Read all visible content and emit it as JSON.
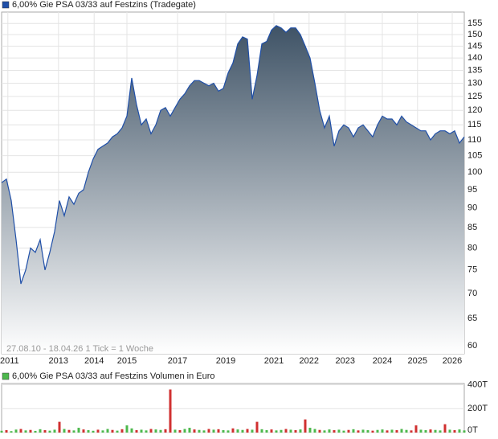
{
  "chart_data": [
    {
      "type": "area",
      "legend": "6,00% Gie PSA 03/33 auf Festzins (Tradegate)",
      "annotation": "27.08.10 - 18.04.26   1 Tick = 1 Woche",
      "color": "#1f4fa8",
      "area_color": "#3f5366",
      "log_scale": true,
      "grid": true,
      "x": [
        0,
        1,
        2,
        3,
        4,
        5,
        6,
        7,
        8,
        9,
        10,
        11,
        12,
        13,
        14,
        15,
        16,
        17,
        18,
        19,
        20,
        21,
        22,
        23,
        24,
        25,
        26,
        27,
        28,
        29,
        30,
        31,
        32,
        33,
        34,
        35,
        36,
        37,
        38,
        39,
        40,
        41,
        42,
        43,
        44,
        45,
        46,
        47,
        48,
        49,
        50,
        51,
        52,
        53,
        54,
        55,
        56,
        57,
        58,
        59,
        60,
        61,
        62,
        63,
        64,
        65,
        66,
        67,
        68,
        69,
        70,
        71,
        72,
        73,
        74,
        75,
        76,
        77,
        78,
        79,
        80,
        81,
        82,
        83,
        84,
        85,
        86,
        87,
        88,
        89,
        90,
        91,
        92,
        93,
        94,
        95,
        96
      ],
      "values": [
        97,
        98,
        92,
        82,
        72,
        75,
        80,
        79,
        82,
        75,
        79,
        84,
        92,
        88,
        93,
        91,
        94,
        95,
        100,
        104,
        107,
        108,
        109,
        111,
        112,
        114,
        118,
        132,
        122,
        115,
        117,
        112,
        115,
        120,
        121,
        118,
        121,
        124,
        126,
        129,
        131,
        131,
        130,
        129,
        130,
        127,
        128,
        134,
        138,
        146,
        149,
        148,
        124,
        133,
        146,
        147,
        152,
        154,
        153,
        151,
        153,
        153,
        150,
        145,
        140,
        130,
        120,
        114,
        118,
        108,
        113,
        115,
        114,
        111,
        114,
        115,
        113,
        111,
        115,
        118,
        117,
        117,
        115,
        118,
        116,
        115,
        114,
        113,
        113,
        110,
        112,
        113,
        113,
        112,
        113,
        109,
        111
      ],
      "xlim": [
        0,
        96
      ],
      "xticks": [
        {
          "value": 1.3,
          "label": "2011"
        },
        {
          "value": 11.8,
          "label": "2013"
        },
        {
          "value": 19.2,
          "label": "2014"
        },
        {
          "value": 26,
          "label": "2015"
        },
        {
          "value": 36.5,
          "label": "2017"
        },
        {
          "value": 46.5,
          "label": "2019"
        },
        {
          "value": 56.5,
          "label": "2021"
        },
        {
          "value": 63.8,
          "label": "2022"
        },
        {
          "value": 71.3,
          "label": "2023"
        },
        {
          "value": 79,
          "label": "2024"
        },
        {
          "value": 86.3,
          "label": "2025"
        },
        {
          "value": 93.5,
          "label": "2026"
        }
      ],
      "ylim": [
        58.6,
        160.3
      ],
      "yticks": [
        60,
        65,
        70,
        75,
        80,
        85,
        90,
        95,
        100,
        105,
        110,
        115,
        120,
        125,
        130,
        135,
        140,
        145,
        150,
        155
      ]
    },
    {
      "type": "bar",
      "legend": "6,00% Gie PSA 03/33 auf Festzins Volumen in Euro",
      "legend_color": "#4cb84c",
      "grid": true,
      "x": [
        0,
        1,
        2,
        3,
        4,
        5,
        6,
        7,
        8,
        9,
        10,
        11,
        12,
        13,
        14,
        15,
        16,
        17,
        18,
        19,
        20,
        21,
        22,
        23,
        24,
        25,
        26,
        27,
        28,
        29,
        30,
        31,
        32,
        33,
        34,
        35,
        36,
        37,
        38,
        39,
        40,
        41,
        42,
        43,
        44,
        45,
        46,
        47,
        48,
        49,
        50,
        51,
        52,
        53,
        54,
        55,
        56,
        57,
        58,
        59,
        60,
        61,
        62,
        63,
        64,
        65,
        66,
        67,
        68,
        69,
        70,
        71,
        72,
        73,
        74,
        75,
        76,
        77,
        78,
        79,
        80,
        81,
        82,
        83,
        84,
        85,
        86,
        87,
        88,
        89,
        90,
        91,
        92,
        93,
        94,
        95,
        96
      ],
      "values": [
        15,
        20,
        12,
        25,
        30,
        18,
        22,
        14,
        28,
        20,
        16,
        24,
        90,
        30,
        22,
        18,
        40,
        26,
        20,
        15,
        24,
        18,
        30,
        22,
        16,
        28,
        60,
        35,
        20,
        24,
        18,
        30,
        26,
        22,
        28,
        360,
        24,
        20,
        30,
        40,
        26,
        22,
        18,
        30,
        24,
        28,
        20,
        18,
        35,
        26,
        22,
        30,
        24,
        90,
        28,
        20,
        26,
        18,
        22,
        30,
        24,
        20,
        26,
        110,
        40,
        30,
        22,
        18,
        26,
        20,
        24,
        16,
        22,
        28,
        18,
        24,
        20,
        16,
        22,
        26,
        18,
        24,
        20,
        30,
        22,
        18,
        60,
        24,
        20,
        26,
        22,
        18,
        70,
        24,
        20,
        26,
        18
      ],
      "colors": [
        "#4cb84c",
        "#d03030",
        "#4cb84c",
        "#4cb84c",
        "#d03030",
        "#4cb84c",
        "#d03030",
        "#4cb84c",
        "#4cb84c",
        "#d03030",
        "#4cb84c",
        "#4cb84c",
        "#d03030",
        "#4cb84c",
        "#d03030",
        "#4cb84c",
        "#4cb84c",
        "#d03030",
        "#4cb84c",
        "#4cb84c",
        "#d03030",
        "#4cb84c",
        "#4cb84c",
        "#d03030",
        "#4cb84c",
        "#d03030",
        "#4cb84c",
        "#4cb84c",
        "#d03030",
        "#4cb84c",
        "#4cb84c",
        "#d03030",
        "#4cb84c",
        "#4cb84c",
        "#d03030",
        "#d03030",
        "#4cb84c",
        "#d03030",
        "#4cb84c",
        "#4cb84c",
        "#d03030",
        "#4cb84c",
        "#4cb84c",
        "#d03030",
        "#4cb84c",
        "#d03030",
        "#4cb84c",
        "#4cb84c",
        "#d03030",
        "#4cb84c",
        "#4cb84c",
        "#d03030",
        "#4cb84c",
        "#d03030",
        "#4cb84c",
        "#4cb84c",
        "#d03030",
        "#4cb84c",
        "#4cb84c",
        "#d03030",
        "#4cb84c",
        "#d03030",
        "#4cb84c",
        "#d03030",
        "#4cb84c",
        "#4cb84c",
        "#d03030",
        "#4cb84c",
        "#4cb84c",
        "#d03030",
        "#4cb84c",
        "#4cb84c",
        "#d03030",
        "#4cb84c",
        "#d03030",
        "#4cb84c",
        "#4cb84c",
        "#d03030",
        "#4cb84c",
        "#4cb84c",
        "#d03030",
        "#4cb84c",
        "#d03030",
        "#4cb84c",
        "#4cb84c",
        "#d03030",
        "#d03030",
        "#4cb84c",
        "#4cb84c",
        "#d03030",
        "#4cb84c",
        "#4cb84c",
        "#d03030",
        "#4cb84c",
        "#d03030",
        "#4cb84c",
        "#4cb84c"
      ],
      "xlim": [
        0,
        96
      ],
      "ylim": [
        0,
        410
      ],
      "yticks": [
        {
          "value": 0,
          "label": "0T"
        },
        {
          "value": 200,
          "label": "200T"
        },
        {
          "value": 400,
          "label": "400T"
        }
      ]
    }
  ]
}
